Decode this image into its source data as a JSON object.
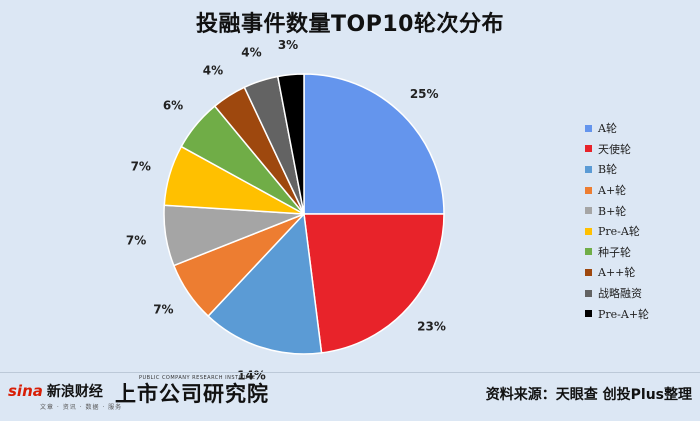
{
  "chart_data": {
    "type": "pie",
    "title": "投融事件数量TOP10轮次分布",
    "slices": [
      {
        "label": "A轮",
        "value": 25,
        "display": "25%",
        "color": "#6495ed"
      },
      {
        "label": "天使轮",
        "value": 23,
        "display": "23%",
        "color": "#e8232a"
      },
      {
        "label": "B轮",
        "value": 14,
        "display": "14%",
        "color": "#5b9bd5"
      },
      {
        "label": "A+轮",
        "value": 7,
        "display": "7%",
        "color": "#ed7d31"
      },
      {
        "label": "B+轮",
        "value": 7,
        "display": "7%",
        "color": "#a5a5a5"
      },
      {
        "label": "Pre-A轮",
        "value": 7,
        "display": "7%",
        "color": "#ffc000"
      },
      {
        "label": "种子轮",
        "value": 6,
        "display": "6%",
        "color": "#70ad47"
      },
      {
        "label": "A++轮",
        "value": 4,
        "display": "4%",
        "color": "#9e480e"
      },
      {
        "label": "战略融资",
        "value": 4,
        "display": "4%",
        "color": "#636363"
      },
      {
        "label": "Pre-A+轮",
        "value": 3,
        "display": "3%",
        "color": "#000000"
      }
    ],
    "legend_position": "right"
  },
  "footer": {
    "sina_logo": "sina",
    "sina_name": "新浪财经",
    "sina_sub": "文章 · 资讯 · 数据 · 服务",
    "institute_name": "上市公司研究院",
    "institute_en": "PUBLIC COMPANY RESEARCH INSTITUTE",
    "source": "资料来源：天眼查 创投Plus整理"
  }
}
